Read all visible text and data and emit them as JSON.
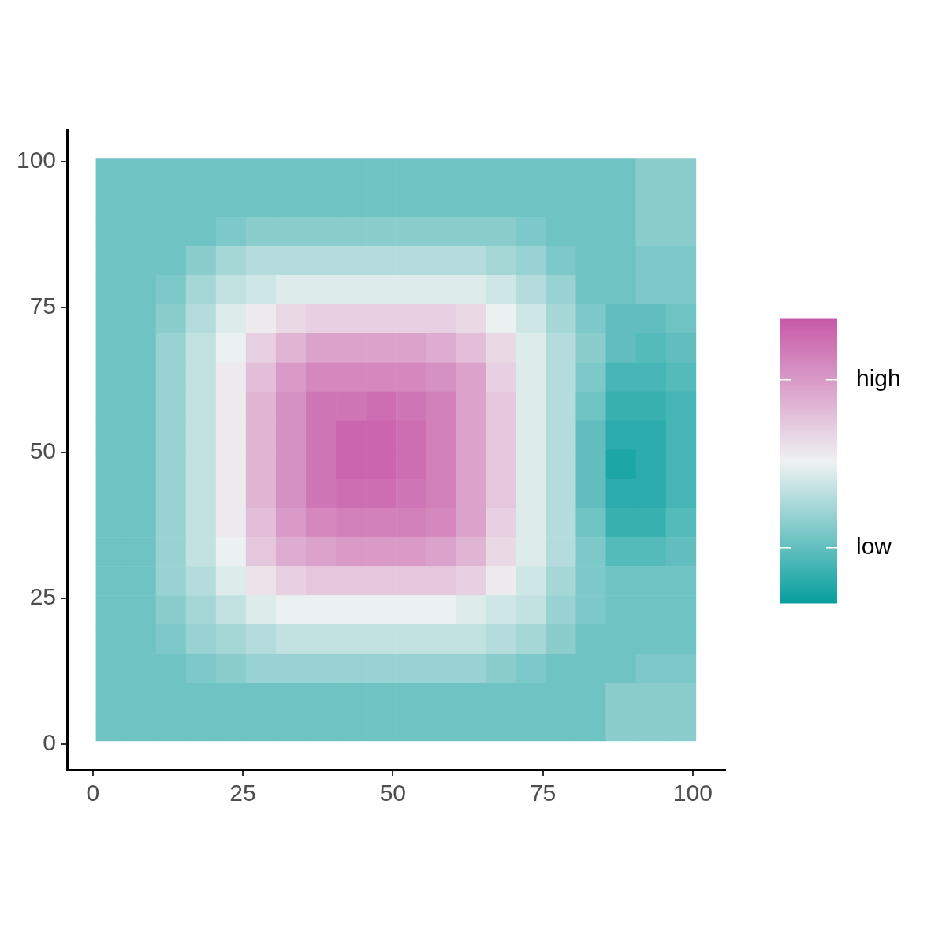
{
  "chart_data": {
    "type": "heatmap",
    "x": [
      3,
      8,
      13,
      18,
      23,
      28,
      33,
      38,
      43,
      48,
      53,
      58,
      63,
      68,
      73,
      78,
      83,
      88,
      93,
      98
    ],
    "y": [
      98,
      93,
      88,
      83,
      78,
      73,
      68,
      63,
      58,
      53,
      48,
      43,
      38,
      33,
      28,
      23,
      18,
      13,
      8,
      3
    ],
    "cells": [
      [
        0.05,
        0.05,
        0.05,
        0.05,
        0.05,
        0.05,
        0.05,
        0.05,
        0.05,
        0.05,
        0.05,
        0.05,
        0.05,
        0.05,
        0.05,
        0.05,
        0.05,
        0.05,
        0.15,
        0.15
      ],
      [
        0.05,
        0.05,
        0.05,
        0.05,
        0.05,
        0.05,
        0.05,
        0.05,
        0.05,
        0.05,
        0.05,
        0.05,
        0.05,
        0.05,
        0.05,
        0.05,
        0.05,
        0.05,
        0.15,
        0.15
      ],
      [
        0.05,
        0.05,
        0.05,
        0.05,
        0.1,
        0.15,
        0.15,
        0.15,
        0.15,
        0.15,
        0.15,
        0.15,
        0.15,
        0.15,
        0.1,
        0.05,
        0.05,
        0.05,
        0.15,
        0.15
      ],
      [
        0.05,
        0.05,
        0.05,
        0.15,
        0.25,
        0.3,
        0.3,
        0.3,
        0.3,
        0.3,
        0.3,
        0.3,
        0.3,
        0.25,
        0.2,
        0.1,
        0.05,
        0.05,
        0.1,
        0.1
      ],
      [
        0.05,
        0.05,
        0.1,
        0.25,
        0.35,
        0.4,
        0.45,
        0.45,
        0.45,
        0.45,
        0.45,
        0.45,
        0.45,
        0.4,
        0.3,
        0.2,
        0.05,
        0.05,
        0.1,
        0.1
      ],
      [
        0.05,
        0.05,
        0.15,
        0.3,
        0.45,
        0.55,
        0.65,
        0.7,
        0.7,
        0.7,
        0.7,
        0.7,
        0.65,
        0.5,
        0.4,
        0.25,
        0.1,
        0,
        0,
        0.05
      ],
      [
        0.05,
        0.05,
        0.2,
        0.35,
        0.5,
        0.7,
        0.85,
        0.95,
        0.95,
        0.95,
        0.95,
        0.9,
        0.8,
        0.65,
        0.45,
        0.3,
        0.15,
        0,
        -0.05,
        0
      ],
      [
        0.05,
        0.05,
        0.2,
        0.35,
        0.55,
        0.8,
        1,
        1.1,
        1.1,
        1.1,
        1.1,
        1.05,
        0.95,
        0.7,
        0.45,
        0.3,
        0.1,
        -0.1,
        -0.1,
        -0.05
      ],
      [
        0.05,
        0.05,
        0.2,
        0.35,
        0.55,
        0.85,
        1.05,
        1.2,
        1.2,
        1.25,
        1.2,
        1.15,
        0.95,
        0.75,
        0.45,
        0.3,
        0.05,
        -0.15,
        -0.15,
        -0.1
      ],
      [
        0.05,
        0.05,
        0.2,
        0.35,
        0.55,
        0.85,
        1.05,
        1.2,
        1.3,
        1.3,
        1.25,
        1.15,
        0.95,
        0.75,
        0.45,
        0.3,
        0,
        -0.2,
        -0.2,
        -0.1
      ],
      [
        0.05,
        0.05,
        0.2,
        0.35,
        0.55,
        0.85,
        1.05,
        1.2,
        1.3,
        1.3,
        1.25,
        1.15,
        0.95,
        0.75,
        0.45,
        0.3,
        0,
        -0.25,
        -0.2,
        -0.1
      ],
      [
        0.05,
        0.05,
        0.2,
        0.35,
        0.55,
        0.85,
        1.05,
        1.2,
        1.25,
        1.25,
        1.2,
        1.15,
        0.95,
        0.75,
        0.45,
        0.3,
        0,
        -0.2,
        -0.2,
        -0.1
      ],
      [
        0.05,
        0.05,
        0.2,
        0.35,
        0.55,
        0.8,
        1,
        1.1,
        1.15,
        1.15,
        1.15,
        1.1,
        0.95,
        0.7,
        0.45,
        0.3,
        0.05,
        -0.15,
        -0.15,
        -0.05
      ],
      [
        0.05,
        0.05,
        0.2,
        0.35,
        0.5,
        0.75,
        0.9,
        0.95,
        1,
        1,
        1,
        0.95,
        0.85,
        0.65,
        0.45,
        0.3,
        0.1,
        -0.05,
        -0.05,
        0
      ],
      [
        0.05,
        0.05,
        0.2,
        0.3,
        0.45,
        0.6,
        0.7,
        0.75,
        0.75,
        0.75,
        0.75,
        0.75,
        0.7,
        0.55,
        0.4,
        0.25,
        0.1,
        0.05,
        0.05,
        0.05
      ],
      [
        0.05,
        0.05,
        0.15,
        0.25,
        0.35,
        0.45,
        0.5,
        0.5,
        0.5,
        0.5,
        0.5,
        0.5,
        0.45,
        0.4,
        0.35,
        0.2,
        0.1,
        0.05,
        0.05,
        0.05
      ],
      [
        0.05,
        0.05,
        0.1,
        0.2,
        0.25,
        0.3,
        0.35,
        0.35,
        0.35,
        0.35,
        0.35,
        0.35,
        0.35,
        0.3,
        0.25,
        0.15,
        0.05,
        0.05,
        0.05,
        0.05
      ],
      [
        0.05,
        0.05,
        0.05,
        0.1,
        0.15,
        0.2,
        0.2,
        0.2,
        0.2,
        0.2,
        0.2,
        0.2,
        0.2,
        0.15,
        0.1,
        0.05,
        0.05,
        0.05,
        0.1,
        0.1
      ],
      [
        0.05,
        0.05,
        0.05,
        0.05,
        0.05,
        0.05,
        0.05,
        0.05,
        0.05,
        0.05,
        0.05,
        0.05,
        0.05,
        0.05,
        0.05,
        0.05,
        0.05,
        0.15,
        0.15,
        0.15
      ],
      [
        0.05,
        0.05,
        0.05,
        0.05,
        0.05,
        0.05,
        0.05,
        0.05,
        0.05,
        0.05,
        0.05,
        0.05,
        0.05,
        0.05,
        0.05,
        0.05,
        0.05,
        0.15,
        0.15,
        0.15
      ]
    ],
    "clim": [
      -0.33,
      1.36
    ],
    "cticks": [
      {
        "value": 0,
        "label": "low"
      },
      {
        "value": 1,
        "label": "high"
      }
    ],
    "colors": [
      "#079e9e",
      "#eff1f1",
      "#c85aa8"
    ],
    "xlim": [
      -4.3,
      105.4
    ],
    "ylim": [
      -4.4,
      105.4
    ],
    "xticks": [
      0,
      25,
      50,
      75,
      100
    ],
    "yticks": [
      0,
      25,
      50,
      75,
      100
    ]
  }
}
